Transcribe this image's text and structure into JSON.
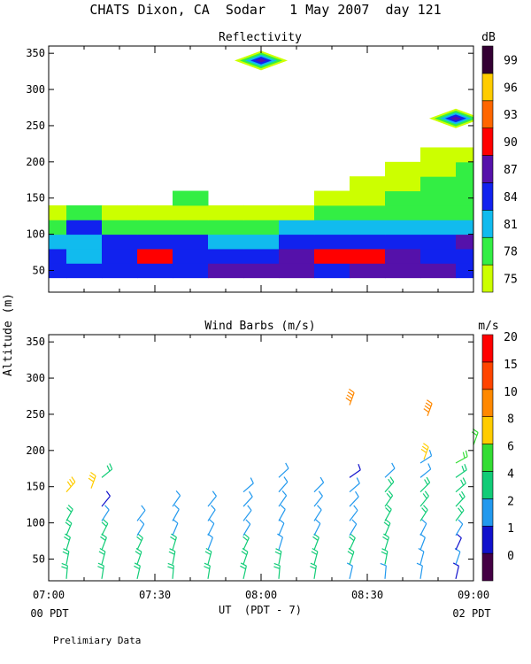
{
  "figure": {
    "title": "CHATS Dixon, CA  Sodar   1 May 2007  day 121",
    "shared_ylabel": "Altitude (m)",
    "xlabel": "UT  (PDT - 7)",
    "x_left_sub": "00 PDT",
    "x_right_sub": "02 PDT",
    "footer": "Prelimiary Data"
  },
  "chart_data": [
    {
      "type": "heatmap",
      "title": "Reflectivity",
      "ylabel": "Altitude (m)",
      "x_range_minutes": [
        420,
        540
      ],
      "xticks": [
        "07:00",
        "07:30",
        "08:00",
        "08:30",
        "09:00"
      ],
      "ylim": [
        20,
        360
      ],
      "yticks": [
        50,
        100,
        150,
        200,
        250,
        300,
        350
      ],
      "colorbar": {
        "label": "dB",
        "levels": [
          75,
          78,
          81,
          84,
          87,
          90,
          93,
          96,
          99
        ],
        "colors": [
          "#ccff00",
          "#33ee44",
          "#11bbee",
          "#1122ee",
          "#5511aa",
          "#ff0000",
          "#ff6600",
          "#ffcc00",
          "#330033"
        ]
      },
      "times": [
        "07:00",
        "07:10",
        "07:20",
        "07:30",
        "07:40",
        "07:50",
        "08:00",
        "08:10",
        "08:20",
        "08:30",
        "08:40",
        "08:50",
        "09:00"
      ],
      "heights": [
        40,
        60,
        80,
        100,
        120,
        140,
        160,
        180,
        200
      ],
      "values": [
        [
          84,
          84,
          84,
          84,
          84,
          87,
          87,
          87,
          84,
          87,
          87,
          87,
          84
        ],
        [
          84,
          81,
          84,
          90,
          84,
          84,
          84,
          87,
          90,
          90,
          87,
          84,
          84
        ],
        [
          81,
          81,
          84,
          84,
          84,
          81,
          81,
          84,
          84,
          84,
          84,
          84,
          87
        ],
        [
          78,
          84,
          78,
          78,
          78,
          78,
          78,
          81,
          81,
          81,
          81,
          81,
          81
        ],
        [
          75,
          78,
          75,
          75,
          75,
          75,
          75,
          75,
          78,
          78,
          78,
          78,
          78
        ],
        [
          null,
          null,
          null,
          null,
          78,
          null,
          null,
          null,
          75,
          75,
          78,
          78,
          78
        ],
        [
          null,
          null,
          null,
          null,
          null,
          null,
          null,
          null,
          null,
          75,
          75,
          78,
          78
        ],
        [
          null,
          null,
          null,
          null,
          null,
          null,
          null,
          null,
          null,
          null,
          75,
          75,
          78
        ],
        [
          null,
          null,
          null,
          null,
          null,
          null,
          null,
          null,
          null,
          null,
          null,
          75,
          75
        ]
      ],
      "isolated_echoes": [
        {
          "time": "08:00",
          "height": 340,
          "peak": 87
        },
        {
          "time": "08:55",
          "height": 260,
          "peak": 87
        }
      ]
    },
    {
      "type": "scatter",
      "title": "Wind Barbs (m/s)",
      "ylabel": "Altitude (m)",
      "x_range_minutes": [
        420,
        540
      ],
      "xticks": [
        "07:00",
        "07:30",
        "08:00",
        "08:30",
        "09:00"
      ],
      "ylim": [
        20,
        360
      ],
      "yticks": [
        50,
        100,
        150,
        200,
        250,
        300,
        350
      ],
      "colorbar": {
        "label": "m/s",
        "levels": [
          0,
          1,
          2,
          4,
          6,
          8,
          10,
          15,
          20
        ],
        "colors": [
          "#440044",
          "#1111cc",
          "#2299ee",
          "#11cc77",
          "#33dd33",
          "#ffcc00",
          "#ff8800",
          "#ff4400",
          "#ff0000"
        ]
      },
      "barb_times": [
        "07:05",
        "07:15",
        "07:25",
        "07:35",
        "07:45",
        "07:55",
        "08:05",
        "08:15",
        "08:25",
        "08:35",
        "08:45",
        "08:55"
      ],
      "barb_heights": [
        30,
        50,
        70,
        90,
        110,
        130,
        150,
        170,
        190
      ],
      "profiles": [
        {
          "time": "07:05",
          "speeds": [
            5,
            5,
            5,
            5,
            4,
            null,
            8,
            null,
            null
          ]
        },
        {
          "time": "07:15",
          "speeds": [
            5,
            5,
            5,
            4,
            3,
            1,
            null,
            5,
            null
          ]
        },
        {
          "time": "07:25",
          "speeds": [
            5,
            5,
            5,
            3,
            3,
            null,
            null,
            null,
            null
          ]
        },
        {
          "time": "07:35",
          "speeds": [
            5,
            4,
            4,
            3,
            3,
            3,
            null,
            null,
            null
          ]
        },
        {
          "time": "07:45",
          "speeds": [
            4,
            4,
            3,
            3,
            3,
            3,
            null,
            null,
            null
          ]
        },
        {
          "time": "07:55",
          "speeds": [
            4,
            4,
            4,
            3,
            3,
            3,
            3,
            null,
            null
          ]
        },
        {
          "time": "08:05",
          "speeds": [
            4,
            4,
            3,
            3,
            3,
            3,
            3,
            3,
            null
          ]
        },
        {
          "time": "08:15",
          "speeds": [
            4,
            4,
            4,
            3,
            3,
            3,
            3,
            null,
            null
          ]
        },
        {
          "time": "08:25",
          "speeds": [
            3,
            4,
            4,
            3,
            3,
            3,
            2,
            1,
            null
          ]
        },
        {
          "time": "08:35",
          "speeds": [
            3,
            4,
            4,
            4,
            4,
            4,
            4,
            3,
            null
          ]
        },
        {
          "time": "08:45",
          "speeds": [
            2,
            3,
            3,
            3,
            4,
            4,
            4,
            3,
            2
          ]
        },
        {
          "time": "08:55",
          "speeds": [
            1,
            2,
            1,
            2,
            4,
            4,
            4,
            4,
            6
          ]
        }
      ],
      "upper_barbs": [
        {
          "time": "07:12",
          "height": 155,
          "speed": 8
        },
        {
          "time": "08:25",
          "height": 270,
          "speed": 12
        },
        {
          "time": "08:47",
          "height": 255,
          "speed": 12
        },
        {
          "time": "08:46",
          "height": 195,
          "speed": 8
        },
        {
          "time": "09:00",
          "height": 215,
          "speed": 6
        }
      ]
    }
  ]
}
